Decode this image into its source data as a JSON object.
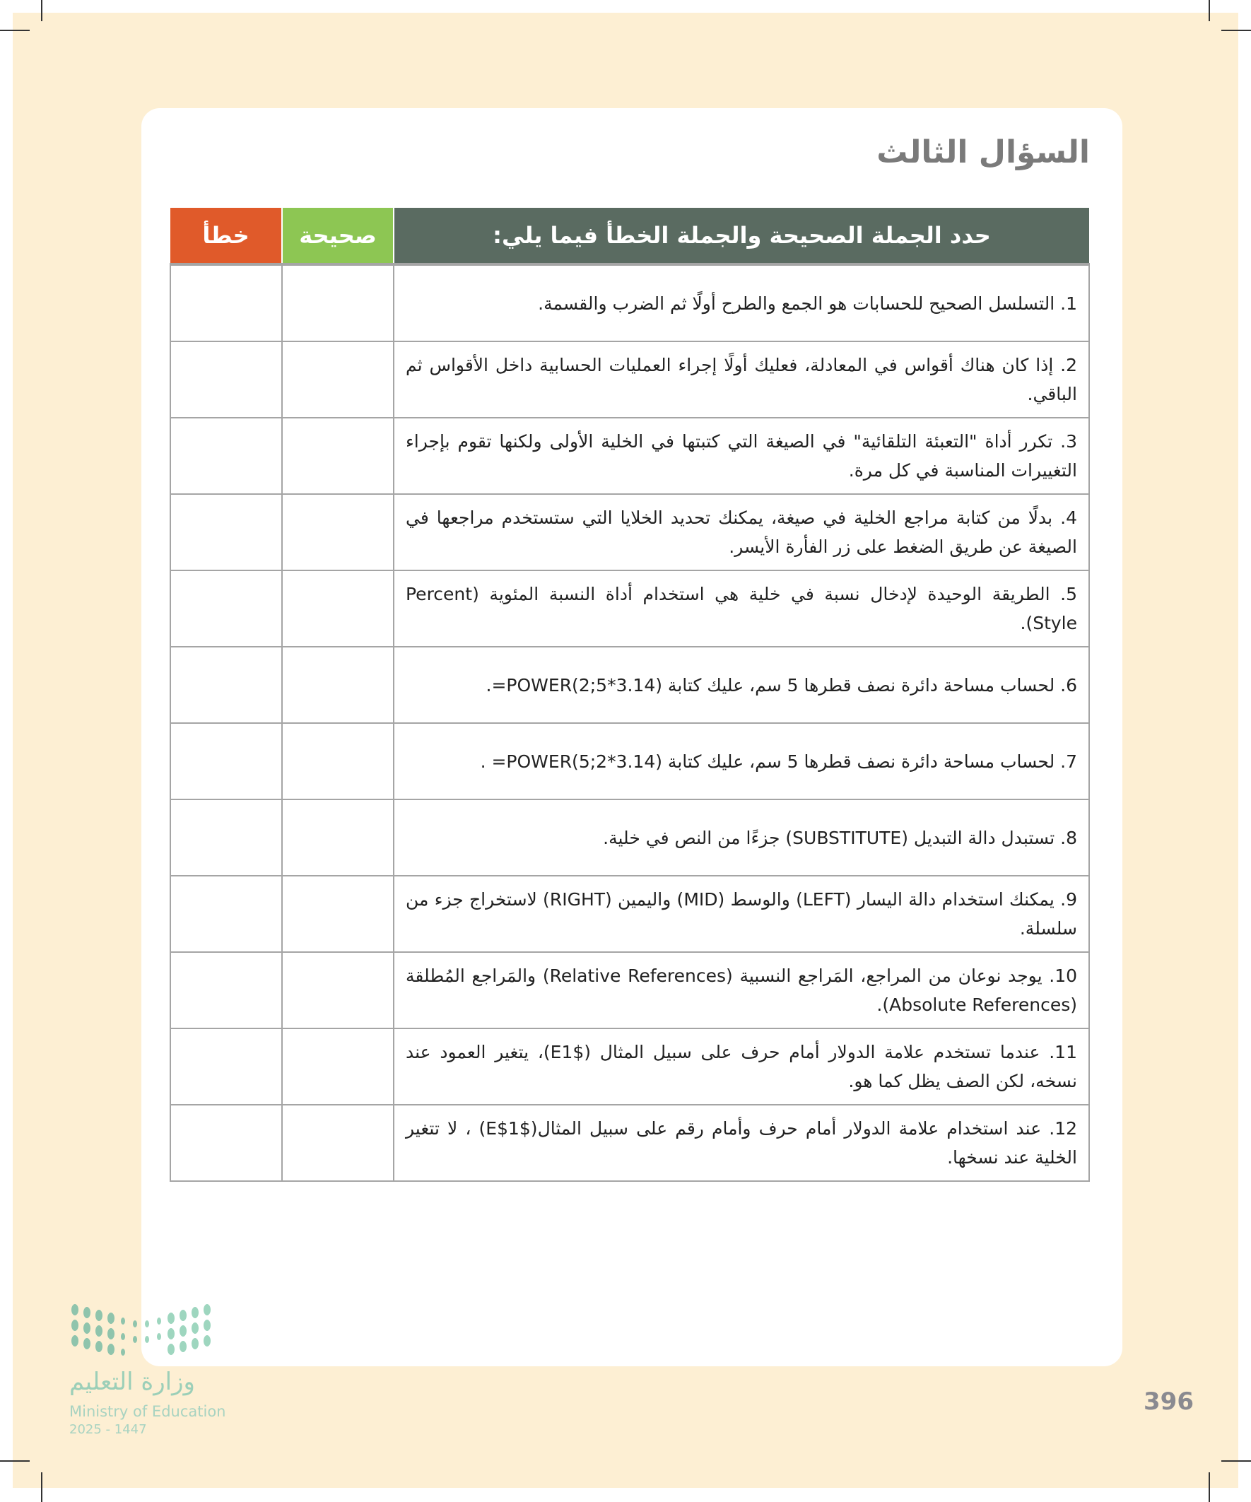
{
  "title": "السؤال الثالث",
  "table": {
    "headers": {
      "statement": "حدد الجملة الصحيحة والجملة الخطأ فيما يلي:",
      "correct": "صحيحة",
      "wrong": "خطأ"
    },
    "header_colors": {
      "statement": "#5a6b61",
      "correct": "#8dc653",
      "wrong": "#e05a2a"
    },
    "rows": [
      "1. التسلسل الصحيح للحسابات هو الجمع والطرح أولًا ثم الضرب والقسمة.",
      "2. إذا كان هناك أقواس في المعادلة، فعليك أولًا إجراء العمليات الحسابية داخل الأقواس ثم الباقي.",
      "3. تكرر أداة \"التعبئة التلقائية\" في الصيغة التي كتبتها في الخلية الأولى ولكنها تقوم بإجراء التغييرات المناسبة في كل مرة.",
      "4. بدلًا من كتابة مراجع الخلية في صيغة، يمكنك تحديد الخلايا التي ستستخدم مراجعها في الصيغة عن طريق الضغط على زر الفأرة الأيسر.",
      "5. الطريقة الوحيدة لإدخال نسبة في خلية هي استخدام أداة النسبة المئوية (Percent Style).",
      "6. لحساب مساحة دائرة نصف قطرها 5 سم، عليك كتابة (3.14*POWER(2;5=.",
      "7. لحساب مساحة دائرة نصف قطرها 5 سم، عليك كتابة (3.14*POWER(5;2= .",
      "8. تستبدل دالة التبديل (SUBSTITUTE) جزءًا من النص في خلية.",
      "9. يمكنك استخدام دالة اليسار (LEFT) والوسط (MID) واليمين (RIGHT) لاستخراج جزء من سلسلة.",
      "10. يوجد نوعان من المراجع، المَراجع النسبية (Relative References) والمَراجع المُطلقة (Absolute References).",
      "11. عندما تستخدم علامة الدولار أمام حرف على سبيل المثال ($E1)، يتغير العمود عند نسخه، لكن الصف يظل كما هو.",
      "12. عند استخدام علامة الدولار أمام حرف وأمام رقم على سبيل المثال($E$1) ، لا تتغير الخلية عند نسخها."
    ]
  },
  "footer": {
    "ministry_ar": "وزارة التعليم",
    "ministry_en": "Ministry of Education",
    "year": "2025 - 1447",
    "page_number": "396"
  }
}
